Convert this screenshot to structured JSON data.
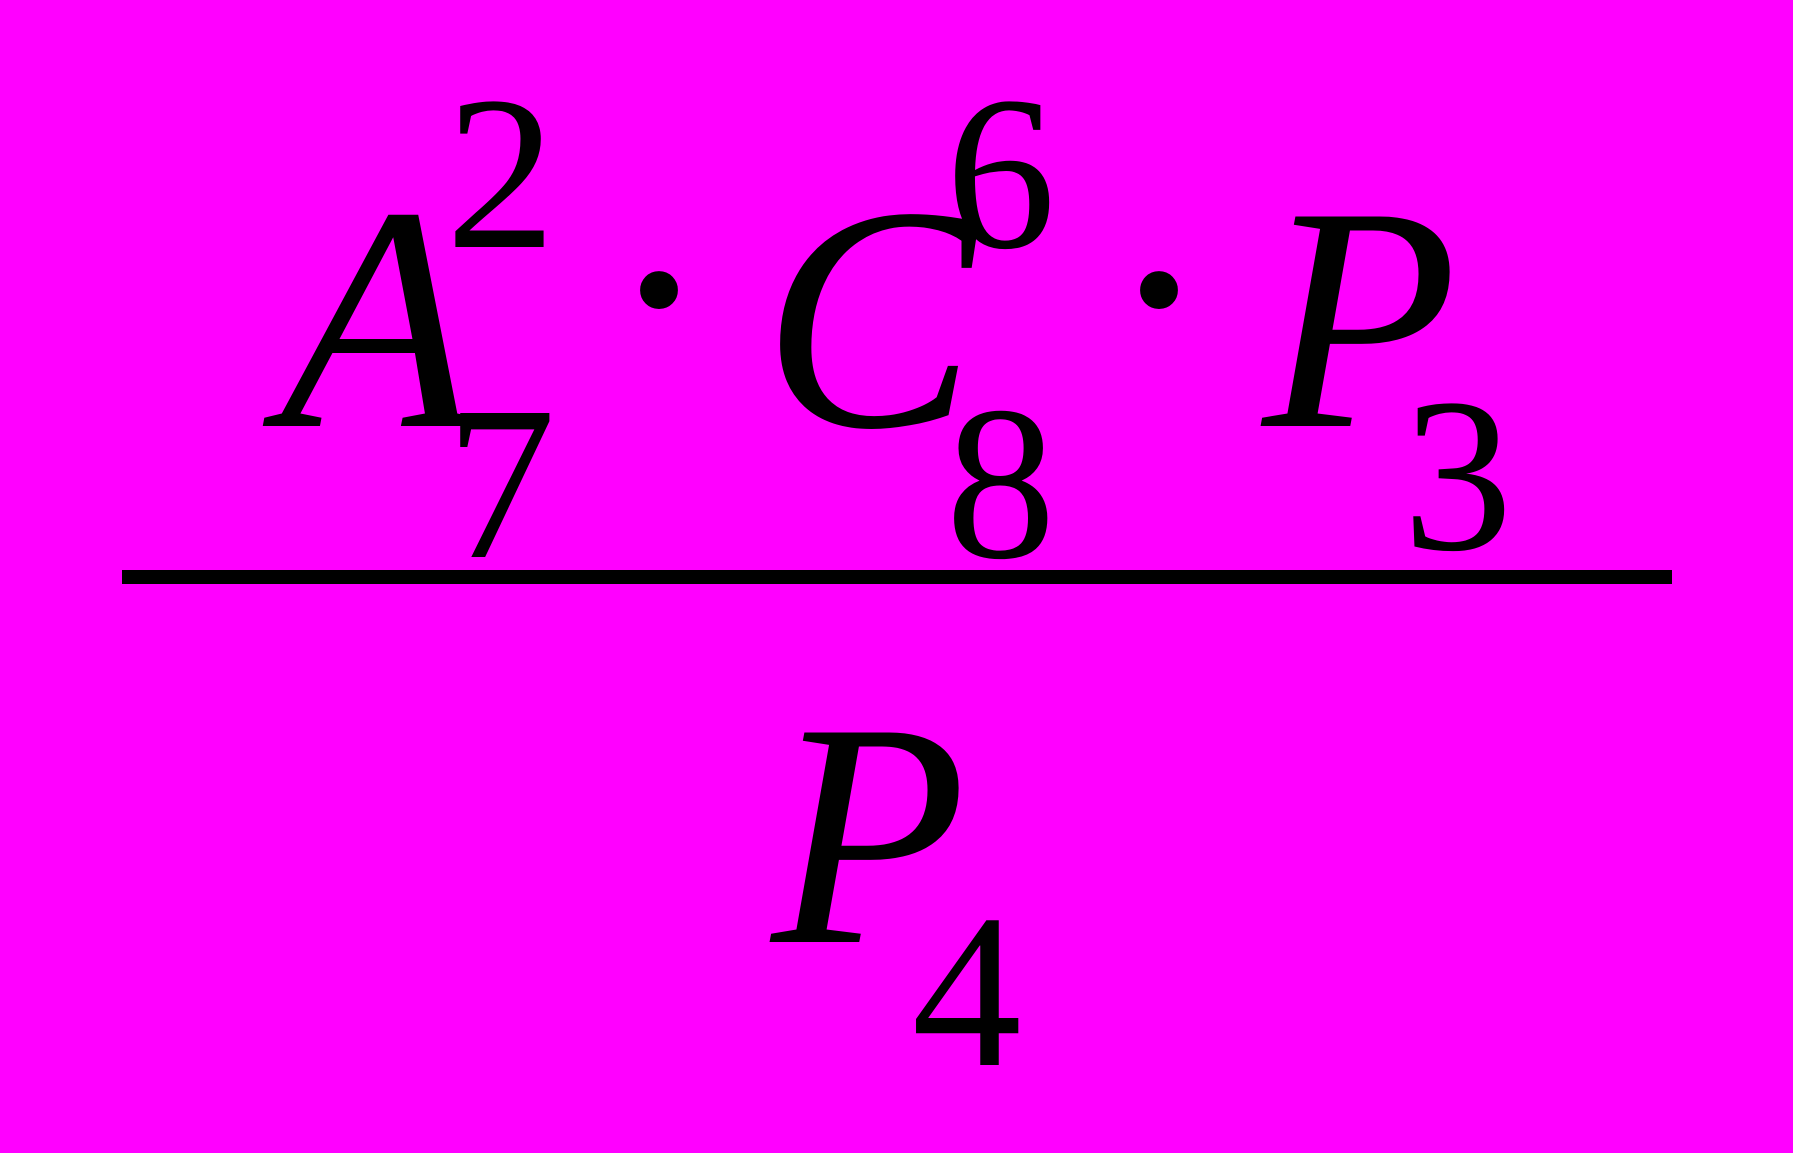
{
  "formula": {
    "background_color": "#ff00ff",
    "text_color": "#000000",
    "base_font_size": 320,
    "script_font_size": 220,
    "dot_font_size": 320,
    "fraction_bar_color": "#000000",
    "fraction_bar_height": 14,
    "fraction_bar_width": 1550,
    "numerator": {
      "terms": [
        {
          "base": "A",
          "subscript": "7",
          "superscript": "2"
        },
        {
          "base": "C",
          "subscript": "8",
          "superscript": "6"
        },
        {
          "base": "P",
          "subscript": "3",
          "superscript": ""
        }
      ],
      "separator": "·"
    },
    "denominator": {
      "terms": [
        {
          "base": "P",
          "subscript": "4",
          "superscript": ""
        }
      ]
    }
  }
}
